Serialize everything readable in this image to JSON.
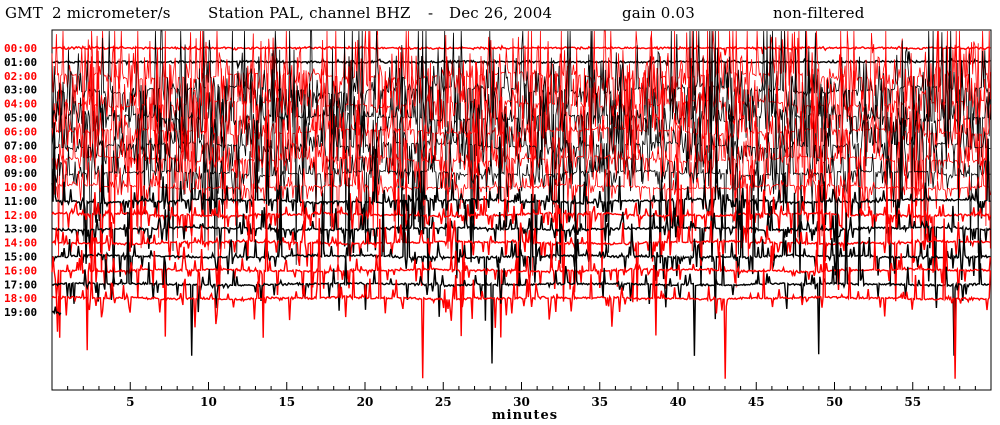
{
  "header": {
    "network": "GMT",
    "units": "2 micrometer/s",
    "station": "Station PAL, channel BHZ",
    "separator": "-",
    "date": "Dec 26, 2004",
    "gain": "gain 0.03",
    "filter": "non-filtered"
  },
  "colors": {
    "even_trace": "#ff0000",
    "odd_trace": "#000000",
    "axes": "#000000",
    "background": "#ffffff"
  },
  "chart_data": {
    "type": "line",
    "title": "GMT  2 micrometer/s  Station PAL, channel BHZ  -  Dec 26, 2004     gain 0.03          non-filtered",
    "xlabel": "minutes",
    "ylabel": "",
    "xlim": [
      0,
      60
    ],
    "xticks": [
      5,
      10,
      15,
      20,
      25,
      30,
      35,
      40,
      45,
      50,
      55
    ],
    "grid": false,
    "hours": [
      "00:00",
      "01:00",
      "02:00",
      "03:00",
      "04:00",
      "05:00",
      "06:00",
      "07:00",
      "08:00",
      "09:00",
      "10:00",
      "11:00",
      "12:00",
      "13:00",
      "14:00",
      "15:00",
      "16:00",
      "17:00",
      "18:00",
      "19:00"
    ],
    "series": [
      {
        "hour": "00:00",
        "color": "#ff0000",
        "start_min": 0,
        "end_min": 60,
        "activity": 0.05,
        "relative_amplitude": 0.15
      },
      {
        "hour": "01:00",
        "color": "#000000",
        "start_min": 0,
        "end_min": 60,
        "activity": 0.08,
        "relative_amplitude": 0.25
      },
      {
        "hour": "02:00",
        "color": "#ff0000",
        "start_min": 0,
        "end_min": 60,
        "activity": 1.0,
        "relative_amplitude": 3.0
      },
      {
        "hour": "03:00",
        "color": "#000000",
        "start_min": 0,
        "end_min": 60,
        "activity": 1.0,
        "relative_amplitude": 3.0
      },
      {
        "hour": "04:00",
        "color": "#ff0000",
        "start_min": 0,
        "end_min": 60,
        "activity": 1.0,
        "relative_amplitude": 2.8
      },
      {
        "hour": "05:00",
        "color": "#000000",
        "start_min": 0,
        "end_min": 60,
        "activity": 0.95,
        "relative_amplitude": 2.6
      },
      {
        "hour": "06:00",
        "color": "#ff0000",
        "start_min": 0,
        "end_min": 60,
        "activity": 0.9,
        "relative_amplitude": 2.4
      },
      {
        "hour": "07:00",
        "color": "#000000",
        "start_min": 0,
        "end_min": 60,
        "activity": 0.85,
        "relative_amplitude": 2.2
      },
      {
        "hour": "08:00",
        "color": "#ff0000",
        "start_min": 0,
        "end_min": 60,
        "activity": 0.8,
        "relative_amplitude": 2.0
      },
      {
        "hour": "09:00",
        "color": "#000000",
        "start_min": 0,
        "end_min": 60,
        "activity": 0.7,
        "relative_amplitude": 1.8
      },
      {
        "hour": "10:00",
        "color": "#ff0000",
        "start_min": 0,
        "end_min": 60,
        "activity": 0.6,
        "relative_amplitude": 1.6
      },
      {
        "hour": "11:00",
        "color": "#000000",
        "start_min": 0,
        "end_min": 60,
        "activity": 0.5,
        "relative_amplitude": 1.4
      },
      {
        "hour": "12:00",
        "color": "#ff0000",
        "start_min": 0,
        "end_min": 60,
        "activity": 0.45,
        "relative_amplitude": 1.3
      },
      {
        "hour": "13:00",
        "color": "#000000",
        "start_min": 0,
        "end_min": 60,
        "activity": 0.4,
        "relative_amplitude": 1.3
      },
      {
        "hour": "14:00",
        "color": "#ff0000",
        "start_min": 0,
        "end_min": 60,
        "activity": 0.4,
        "relative_amplitude": 1.3
      },
      {
        "hour": "15:00",
        "color": "#000000",
        "start_min": 0,
        "end_min": 60,
        "activity": 0.35,
        "relative_amplitude": 1.4
      },
      {
        "hour": "16:00",
        "color": "#ff0000",
        "start_min": 0,
        "end_min": 60,
        "activity": 0.35,
        "relative_amplitude": 1.5
      },
      {
        "hour": "17:00",
        "color": "#000000",
        "start_min": 0,
        "end_min": 60,
        "activity": 0.3,
        "relative_amplitude": 1.6
      },
      {
        "hour": "18:00",
        "color": "#ff0000",
        "start_min": 0,
        "end_min": 60,
        "activity": 0.3,
        "relative_amplitude": 1.8
      },
      {
        "hour": "19:00",
        "color": "#000000",
        "start_min": 0,
        "end_min": 0.6,
        "activity": 0.2,
        "relative_amplitude": 0.3
      }
    ]
  }
}
